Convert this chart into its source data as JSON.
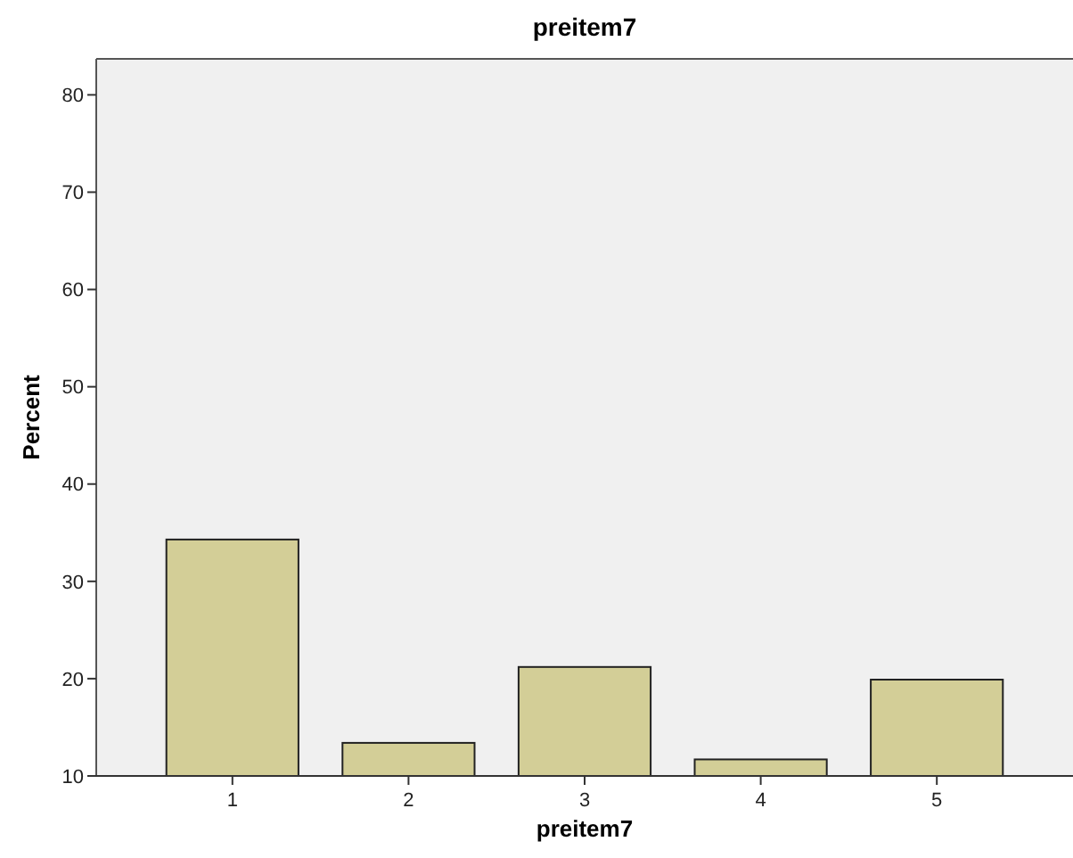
{
  "chart_data": {
    "type": "bar",
    "title": "preitem7",
    "xlabel": "preitem7",
    "ylabel": "Percent",
    "categories": [
      "1",
      "2",
      "3",
      "4",
      "5"
    ],
    "values": [
      34.3,
      13.4,
      21.2,
      11.7,
      19.9
    ],
    "color": "#d3ce97",
    "ylim": [
      10,
      83.7
    ],
    "yticks": [
      10,
      20,
      30,
      40,
      50,
      60,
      70,
      80
    ],
    "grid": false
  }
}
